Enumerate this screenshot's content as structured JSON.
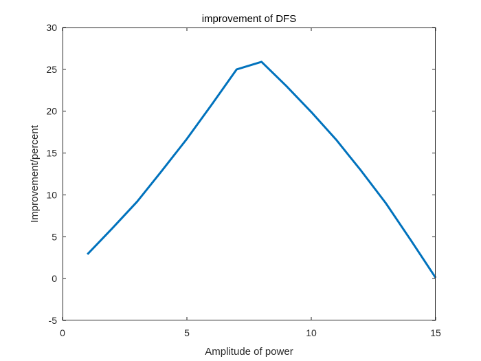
{
  "chart_data": {
    "type": "line",
    "title": "improvement of DFS",
    "xlabel": "Amplitude of power",
    "ylabel": "Improvement/percent",
    "xlim": [
      0,
      15
    ],
    "ylim": [
      -5,
      30
    ],
    "xticks": [
      0,
      5,
      10,
      15
    ],
    "yticks": [
      -5,
      0,
      5,
      10,
      15,
      20,
      25,
      30
    ],
    "grid": false,
    "series": [
      {
        "color": "#0072BD",
        "x": [
          1,
          2,
          3,
          4,
          5,
          6,
          7,
          8,
          9,
          10,
          11,
          12,
          13,
          14,
          15
        ],
        "y": [
          2.9,
          6.0,
          9.2,
          12.9,
          16.7,
          20.8,
          25.0,
          25.9,
          23.0,
          19.9,
          16.6,
          12.9,
          9.0,
          4.6,
          0.1
        ]
      }
    ]
  }
}
